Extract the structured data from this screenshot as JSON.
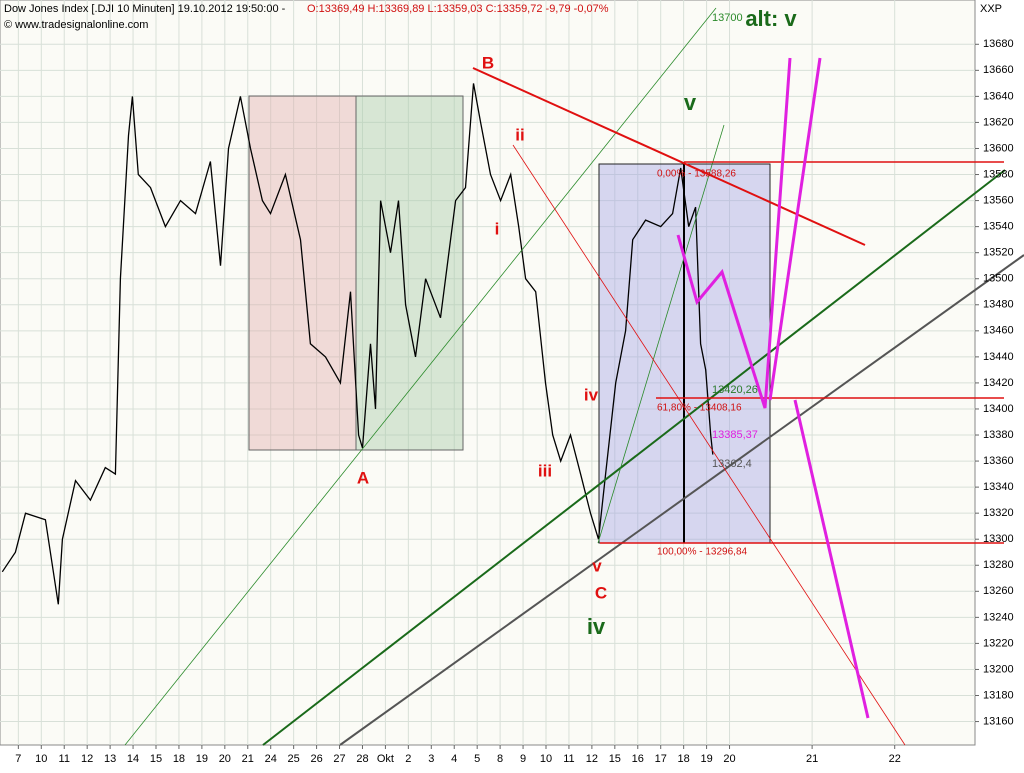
{
  "chart_data": {
    "type": "line",
    "title": "Dow Jones Index [.DJI  10 Minuten] 19.10.2012 19:50:00 -",
    "subtitle": "O:13369,49 H:13369,89 L:13359,03 C:13359,72 -9,79 -0,07%",
    "source": "© www.tradesignalonline.com",
    "axis_label": "XXP",
    "series": [
      {
        "name": "Dow Jones Index",
        "color": "#000000",
        "x": [
          -0.7,
          -0.13,
          0.31,
          1.18,
          1.74,
          1.92,
          2.49,
          3.14,
          3.79,
          4.23,
          4.45,
          4.8,
          4.97,
          5.23,
          5.76,
          6.41,
          7.07,
          7.72,
          8.37,
          8.81,
          9.16,
          9.68,
          10.12,
          10.64,
          10.99,
          11.64,
          12.3,
          12.73,
          13.39,
          14.04,
          14.48,
          14.83,
          15.0,
          15.35,
          15.57,
          15.79,
          16.22,
          16.57,
          16.88,
          17.31,
          17.75,
          18.4,
          19.06,
          19.49,
          19.84,
          20.15,
          20.58,
          21.02,
          21.46,
          21.81,
          22.11,
          22.55,
          22.98,
          23.29,
          23.64,
          24.07,
          24.51,
          24.94,
          25.29,
          25.6,
          26.04,
          26.47,
          26.78,
          27.34,
          28.0,
          28.52,
          28.87,
          29.22,
          29.52,
          29.74,
          29.96,
          30.18,
          30.27
        ],
        "values": [
          13275,
          13290,
          13320,
          13315,
          13250,
          13300,
          13345,
          13330,
          13355,
          13350,
          13500,
          13610,
          13640,
          13580,
          13570,
          13540,
          13560,
          13550,
          13590,
          13510,
          13600,
          13640,
          13600,
          13560,
          13550,
          13580,
          13530,
          13450,
          13440,
          13420,
          13490,
          13380,
          13370,
          13450,
          13400,
          13560,
          13520,
          13560,
          13480,
          13440,
          13500,
          13470,
          13560,
          13570,
          13650,
          13620,
          13580,
          13560,
          13580,
          13540,
          13500,
          13490,
          13420,
          13380,
          13360,
          13380,
          13350,
          13320,
          13300,
          13350,
          13420,
          13460,
          13530,
          13545,
          13540,
          13550,
          13585,
          13540,
          13555,
          13450,
          13430,
          13380,
          13365
        ]
      }
    ],
    "xlim": [
      -0.8,
      41.7
    ],
    "ylim": [
      13142,
      13714
    ],
    "xticks": [
      {
        "value": 0,
        "label": "7"
      },
      {
        "value": 1,
        "label": "10"
      },
      {
        "value": 2,
        "label": "11"
      },
      {
        "value": 3,
        "label": "12"
      },
      {
        "value": 4,
        "label": "13"
      },
      {
        "value": 5,
        "label": "14"
      },
      {
        "value": 6,
        "label": "15"
      },
      {
        "value": 7,
        "label": "18"
      },
      {
        "value": 8,
        "label": "19"
      },
      {
        "value": 9,
        "label": "20"
      },
      {
        "value": 10,
        "label": "21"
      },
      {
        "value": 11,
        "label": "24"
      },
      {
        "value": 12,
        "label": "25"
      },
      {
        "value": 13,
        "label": "26"
      },
      {
        "value": 14,
        "label": "27"
      },
      {
        "value": 15,
        "label": "28"
      },
      {
        "value": 16,
        "label": "Okt"
      },
      {
        "value": 17,
        "label": "2"
      },
      {
        "value": 18,
        "label": "3"
      },
      {
        "value": 19,
        "label": "4"
      },
      {
        "value": 20,
        "label": "5"
      },
      {
        "value": 21,
        "label": "8"
      },
      {
        "value": 22,
        "label": "9"
      },
      {
        "value": 23,
        "label": "10"
      },
      {
        "value": 24,
        "label": "11"
      },
      {
        "value": 25,
        "label": "12"
      },
      {
        "value": 26,
        "label": "15"
      },
      {
        "value": 27,
        "label": "16"
      },
      {
        "value": 28,
        "label": "17"
      },
      {
        "value": 29,
        "label": "18"
      },
      {
        "value": 30,
        "label": "19"
      },
      {
        "value": 31,
        "label": "20"
      },
      {
        "value": 34.6,
        "label": "21"
      },
      {
        "value": 38.2,
        "label": "22"
      }
    ],
    "yticks": [
      13160,
      13180,
      13200,
      13220,
      13240,
      13260,
      13280,
      13300,
      13320,
      13340,
      13360,
      13380,
      13400,
      13420,
      13440,
      13460,
      13480,
      13500,
      13520,
      13540,
      13560,
      13580,
      13600,
      13620,
      13640,
      13660,
      13680
    ],
    "grid": true,
    "annotations": {
      "wave_B": "B",
      "wave_A": "A",
      "wave_C": "C",
      "wave_i": "i",
      "wave_ii": "ii",
      "wave_iii": "iii",
      "wave_iv": "iv",
      "wave_v": "v",
      "big_iv": "iv",
      "big_v": "v",
      "alt": "alt: v",
      "top_level": "13700",
      "fib0": "0,00% - 13588,26",
      "fib618": "61,80% - 13408,16",
      "fib100": "100,00% - 13296,84",
      "lvl1": "13420,26",
      "lvl2": "13385,37",
      "lvl3": "13362,4"
    }
  }
}
